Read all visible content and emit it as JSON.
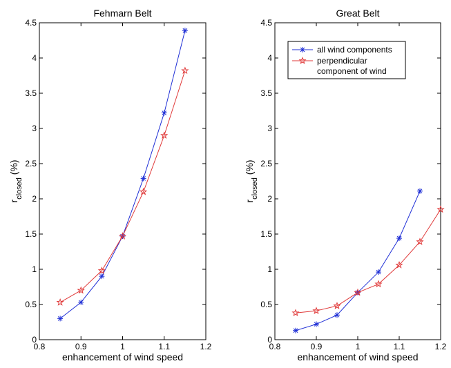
{
  "chart_data": [
    {
      "type": "line",
      "title": "Fehmarn Belt",
      "xlabel": "enhancement of wind speed",
      "ylabel": "r",
      "ylabel_subscript": "closed",
      "ylabel_unit": "(%)",
      "xlim": [
        0.8,
        1.2
      ],
      "ylim": [
        0,
        4.5
      ],
      "xticks": [
        "0.8",
        "0.9",
        "1",
        "1.1",
        "1.2"
      ],
      "yticks": [
        "0",
        "0.5",
        "1",
        "1.5",
        "2",
        "2.5",
        "3",
        "3.5",
        "4",
        "4.5"
      ],
      "grid": false,
      "legend": null,
      "series": [
        {
          "color": "#1f2fd6",
          "marker": "asterisk",
          "x": [
            0.85,
            0.9,
            0.95,
            1.0,
            1.05,
            1.1,
            1.15
          ],
          "y": [
            0.3,
            0.53,
            0.9,
            1.47,
            2.29,
            3.22,
            4.39
          ]
        },
        {
          "color": "#e03a3a",
          "marker": "star",
          "x": [
            0.85,
            0.9,
            0.95,
            1.0,
            1.05,
            1.1,
            1.15
          ],
          "y": [
            0.53,
            0.7,
            0.98,
            1.47,
            2.1,
            2.9,
            3.82
          ]
        }
      ]
    },
    {
      "type": "line",
      "title": "Great Belt",
      "xlabel": "enhancement of wind speed",
      "ylabel": "r",
      "ylabel_subscript": "closed",
      "ylabel_unit": "(%)",
      "xlim": [
        0.8,
        1.2
      ],
      "ylim": [
        0,
        4.5
      ],
      "xticks": [
        "0.8",
        "0.9",
        "1",
        "1.1",
        "1.2"
      ],
      "yticks": [
        "0",
        "0.5",
        "1",
        "1.5",
        "2",
        "2.5",
        "3",
        "3.5",
        "4",
        "4.5"
      ],
      "grid": false,
      "legend": {
        "placement": "top-left",
        "entries": [
          "all wind components",
          "perpendicular",
          "component of wind"
        ]
      },
      "series": [
        {
          "name": "all wind components",
          "color": "#1f2fd6",
          "marker": "asterisk",
          "x": [
            0.85,
            0.9,
            0.95,
            1.0,
            1.05,
            1.1,
            1.15
          ],
          "y": [
            0.13,
            0.22,
            0.35,
            0.67,
            0.96,
            1.44,
            2.11
          ]
        },
        {
          "name": "perpendicular component of wind",
          "color": "#e03a3a",
          "marker": "star",
          "x": [
            0.85,
            0.9,
            0.95,
            1.0,
            1.05,
            1.1,
            1.15,
            1.2
          ],
          "y": [
            0.38,
            0.41,
            0.48,
            0.67,
            0.79,
            1.06,
            1.39,
            1.85
          ]
        }
      ]
    }
  ]
}
